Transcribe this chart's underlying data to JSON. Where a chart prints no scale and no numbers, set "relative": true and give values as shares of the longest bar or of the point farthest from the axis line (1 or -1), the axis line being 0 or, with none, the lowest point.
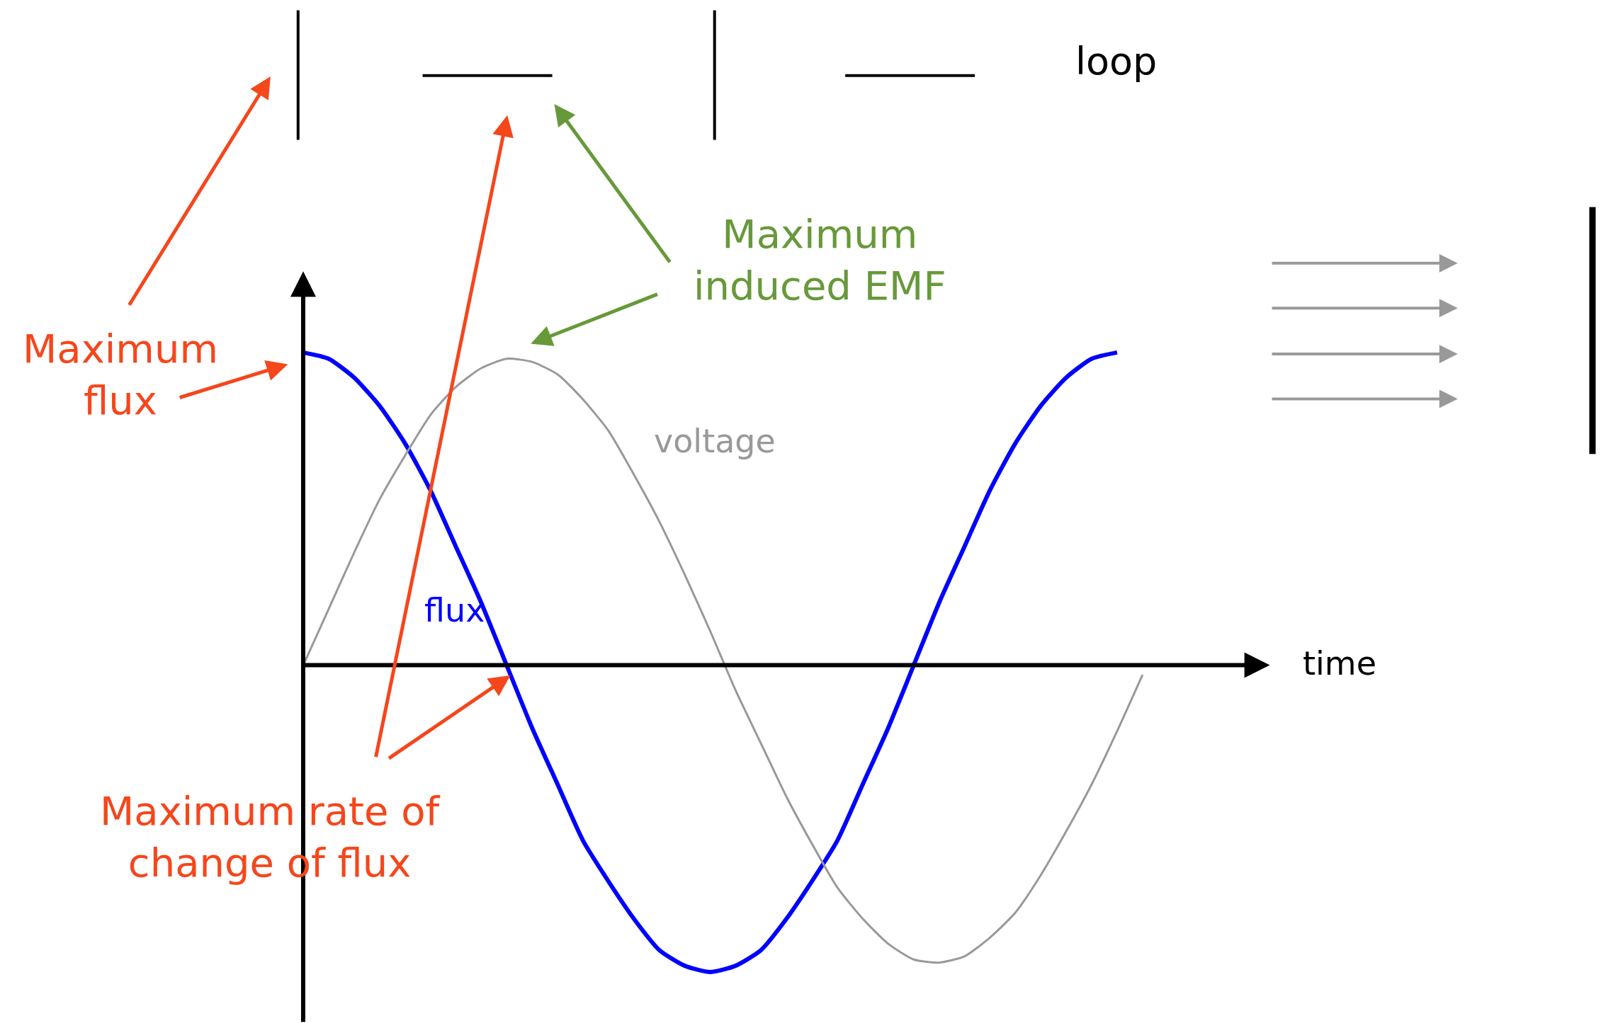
{
  "chart_data": {
    "type": "line",
    "relative": true,
    "xlabel": "time",
    "categories": [
      null,
      null,
      null,
      null,
      null,
      null,
      null,
      null,
      null,
      null,
      null,
      null,
      null,
      null,
      null,
      null,
      null,
      null,
      null,
      null,
      null,
      null,
      null,
      null,
      null,
      null,
      null,
      null,
      null,
      null,
      null,
      null,
      null,
      null
    ],
    "series": [
      {
        "name": "flux",
        "color": "#0000ff",
        "values": [
          1,
          0.98,
          0.92,
          0.83,
          0.71,
          0.56,
          0.38,
          0.2,
          0,
          -0.2,
          -0.38,
          -0.56,
          -0.69,
          -0.81,
          -0.91,
          -0.96,
          -0.98,
          -0.96,
          -0.91,
          -0.81,
          -0.69,
          -0.56,
          -0.38,
          -0.2,
          0,
          0.2,
          0.38,
          0.56,
          0.71,
          0.83,
          0.92,
          0.98,
          1,
          null
        ]
      },
      {
        "name": "voltage",
        "color": "#999999",
        "values": [
          0,
          0.18,
          0.36,
          0.53,
          0.67,
          0.8,
          0.89,
          0.95,
          0.98,
          0.97,
          0.93,
          0.85,
          0.75,
          0.61,
          0.46,
          0.29,
          0.11,
          -0.08,
          -0.25,
          -0.42,
          -0.57,
          -0.71,
          -0.81,
          -0.89,
          -0.94,
          -0.95,
          -0.93,
          -0.87,
          -0.79,
          -0.67,
          -0.53,
          -0.38,
          -0.21,
          -0.03
        ]
      }
    ],
    "annotations": [
      "Maximum\nflux",
      "Maximum\ninduced EMF",
      "Maximum rate of\nchange of flux",
      "loop"
    ]
  }
}
